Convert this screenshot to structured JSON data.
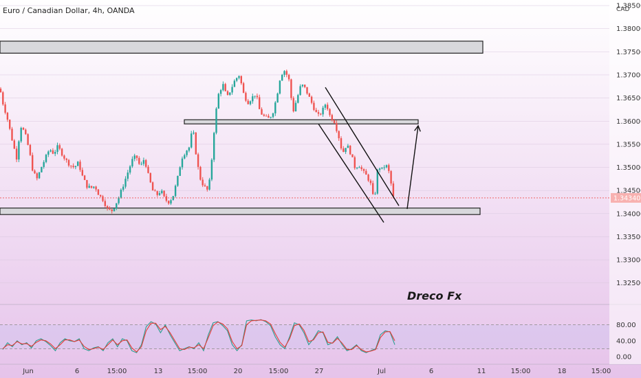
{
  "header": {
    "title": "Euro / Canadian Dollar, 4h, OANDA",
    "currency": "CAD"
  },
  "watermark": "Dreco Fx",
  "colors": {
    "up": "#26a69a",
    "down": "#ef5350",
    "bg_top": "#ffffff",
    "bg_bottom": "#e6c3ea",
    "zone_fill": "#d8d8dc",
    "zone_stroke": "#222222",
    "price_line": "#ef5350",
    "k_line": "#2a9d8f",
    "d_line": "#e53935",
    "osc_band": "#c9c3f0"
  },
  "chart_data": [
    {
      "type": "candlestick",
      "title": "Euro / Canadian Dollar, 4h, OANDA",
      "ylabel": "CAD",
      "ylim": [
        1.3205,
        1.3862
      ],
      "y_ticks": [
        "1.38500",
        "1.38000",
        "1.37500",
        "1.37000",
        "1.36500",
        "1.36000",
        "1.35500",
        "1.35000",
        "1.34500",
        "1.34000",
        "1.33500",
        "1.33000",
        "1.32500"
      ],
      "x_ticks": [
        "Jun",
        "6",
        "15:00",
        "13",
        "15:00",
        "20",
        "15:00",
        "27",
        "Jul",
        "6",
        "11",
        "15:00",
        "18",
        "15:00"
      ],
      "last_price": "1.34340",
      "last_price_value": 1.3434,
      "close_path": [
        [
          0,
          1.367
        ],
        [
          4,
          1.364
        ],
        [
          10,
          1.361
        ],
        [
          16,
          1.357
        ],
        [
          24,
          1.352
        ],
        [
          30,
          1.359
        ],
        [
          36,
          1.3575
        ],
        [
          42,
          1.354
        ],
        [
          48,
          1.349
        ],
        [
          54,
          1.3475
        ],
        [
          60,
          1.35
        ],
        [
          66,
          1.352
        ],
        [
          72,
          1.354
        ],
        [
          78,
          1.353
        ],
        [
          84,
          1.3545
        ],
        [
          90,
          1.353
        ],
        [
          96,
          1.3515
        ],
        [
          102,
          1.3505
        ],
        [
          108,
          1.35
        ],
        [
          114,
          1.351
        ],
        [
          120,
          1.348
        ],
        [
          126,
          1.346
        ],
        [
          132,
          1.3455
        ],
        [
          138,
          1.346
        ],
        [
          144,
          1.344
        ],
        [
          150,
          1.343
        ],
        [
          156,
          1.341
        ],
        [
          162,
          1.3405
        ],
        [
          168,
          1.342
        ],
        [
          174,
          1.344
        ],
        [
          180,
          1.3465
        ],
        [
          186,
          1.349
        ],
        [
          192,
          1.3515
        ],
        [
          198,
          1.3525
        ],
        [
          204,
          1.35
        ],
        [
          210,
          1.352
        ],
        [
          216,
          1.348
        ],
        [
          222,
          1.345
        ],
        [
          228,
          1.344
        ],
        [
          234,
          1.345
        ],
        [
          240,
          1.343
        ],
        [
          246,
          1.3425
        ],
        [
          252,
          1.344
        ],
        [
          258,
          1.3475
        ],
        [
          264,
          1.352
        ],
        [
          270,
          1.3535
        ],
        [
          276,
          1.3545
        ],
        [
          280,
          1.359
        ],
        [
          284,
          1.354
        ],
        [
          290,
          1.348
        ],
        [
          296,
          1.346
        ],
        [
          302,
          1.345
        ],
        [
          306,
          1.348
        ],
        [
          310,
          1.356
        ],
        [
          314,
          1.362
        ],
        [
          318,
          1.366
        ],
        [
          324,
          1.368
        ],
        [
          330,
          1.365
        ],
        [
          336,
          1.367
        ],
        [
          342,
          1.369
        ],
        [
          348,
          1.37
        ],
        [
          354,
          1.366
        ],
        [
          360,
          1.364
        ],
        [
          366,
          1.365
        ],
        [
          372,
          1.366
        ],
        [
          378,
          1.362
        ],
        [
          384,
          1.361
        ],
        [
          390,
          1.3605
        ],
        [
          396,
          1.3615
        ],
        [
          402,
          1.365
        ],
        [
          408,
          1.37
        ],
        [
          414,
          1.371
        ],
        [
          420,
          1.369
        ],
        [
          426,
          1.362
        ],
        [
          432,
          1.365
        ],
        [
          438,
          1.368
        ],
        [
          444,
          1.367
        ],
        [
          450,
          1.365
        ],
        [
          456,
          1.363
        ],
        [
          462,
          1.361
        ],
        [
          468,
          1.362
        ],
        [
          474,
          1.364
        ],
        [
          480,
          1.361
        ],
        [
          486,
          1.36
        ],
        [
          492,
          1.357
        ],
        [
          498,
          1.353
        ],
        [
          504,
          1.355
        ],
        [
          510,
          1.353
        ],
        [
          516,
          1.35
        ],
        [
          522,
          1.3505
        ],
        [
          528,
          1.349
        ],
        [
          534,
          1.348
        ],
        [
          540,
          1.346
        ],
        [
          544,
          1.342
        ],
        [
          548,
          1.349
        ],
        [
          552,
          1.35
        ],
        [
          556,
          1.3495
        ],
        [
          560,
          1.3505
        ],
        [
          564,
          1.35
        ],
        [
          568,
          1.347
        ],
        [
          572,
          1.3434
        ]
      ],
      "zones": [
        {
          "x0": 0,
          "x1": 702,
          "top": 1.3773,
          "bottom": 1.3747
        },
        {
          "x0": 268,
          "x1": 608,
          "top": 1.3603,
          "bottom": 1.3594
        },
        {
          "x0": 0,
          "x1": 698,
          "top": 1.3412,
          "bottom": 1.3398
        }
      ],
      "channel_lines": [
        {
          "x1": 473,
          "y1": 1.3673,
          "x2": 580,
          "y2": 1.3417
        },
        {
          "x1": 463,
          "y1": 1.3594,
          "x2": 558,
          "y2": 1.3381
        }
      ],
      "projection_arrow": {
        "x1": 592,
        "y1": 1.341,
        "x2": 608,
        "y2": 1.359
      }
    },
    {
      "type": "line",
      "title": "Stochastic",
      "ylim": [
        0,
        100
      ],
      "y_ticks": [
        "80.00",
        "40.00",
        "0.00"
      ],
      "band": [
        20,
        80
      ],
      "series": [
        {
          "key": "k",
          "values": [
            18,
            35,
            25,
            40,
            30,
            35,
            22,
            40,
            45,
            38,
            28,
            15,
            35,
            45,
            40,
            38,
            45,
            20,
            15,
            22,
            25,
            15,
            35,
            45,
            25,
            45,
            40,
            15,
            10,
            30,
            75,
            88,
            82,
            60,
            80,
            55,
            35,
            15,
            20,
            25,
            20,
            35,
            15,
            55,
            85,
            88,
            78,
            65,
            30,
            15,
            30,
            90,
            92,
            90,
            93,
            88,
            78,
            50,
            30,
            20,
            50,
            85,
            80,
            60,
            30,
            45,
            65,
            60,
            30,
            35,
            50,
            30,
            15,
            20,
            30,
            15,
            10,
            15,
            20,
            55,
            65,
            62,
            30
          ]
        },
        {
          "key": "d",
          "values": [
            20,
            30,
            28,
            38,
            32,
            33,
            26,
            36,
            42,
            40,
            32,
            20,
            30,
            42,
            42,
            38,
            42,
            26,
            18,
            20,
            24,
            18,
            30,
            42,
            30,
            40,
            42,
            22,
            12,
            25,
            65,
            84,
            84,
            68,
            76,
            60,
            40,
            20,
            18,
            24,
            22,
            30,
            20,
            48,
            78,
            87,
            82,
            70,
            38,
            20,
            28,
            80,
            90,
            91,
            92,
            90,
            82,
            58,
            36,
            24,
            45,
            78,
            82,
            66,
            38,
            42,
            60,
            62,
            36,
            34,
            46,
            34,
            18,
            18,
            28,
            18,
            12,
            14,
            18,
            48,
            62,
            63,
            40
          ]
        }
      ]
    }
  ]
}
